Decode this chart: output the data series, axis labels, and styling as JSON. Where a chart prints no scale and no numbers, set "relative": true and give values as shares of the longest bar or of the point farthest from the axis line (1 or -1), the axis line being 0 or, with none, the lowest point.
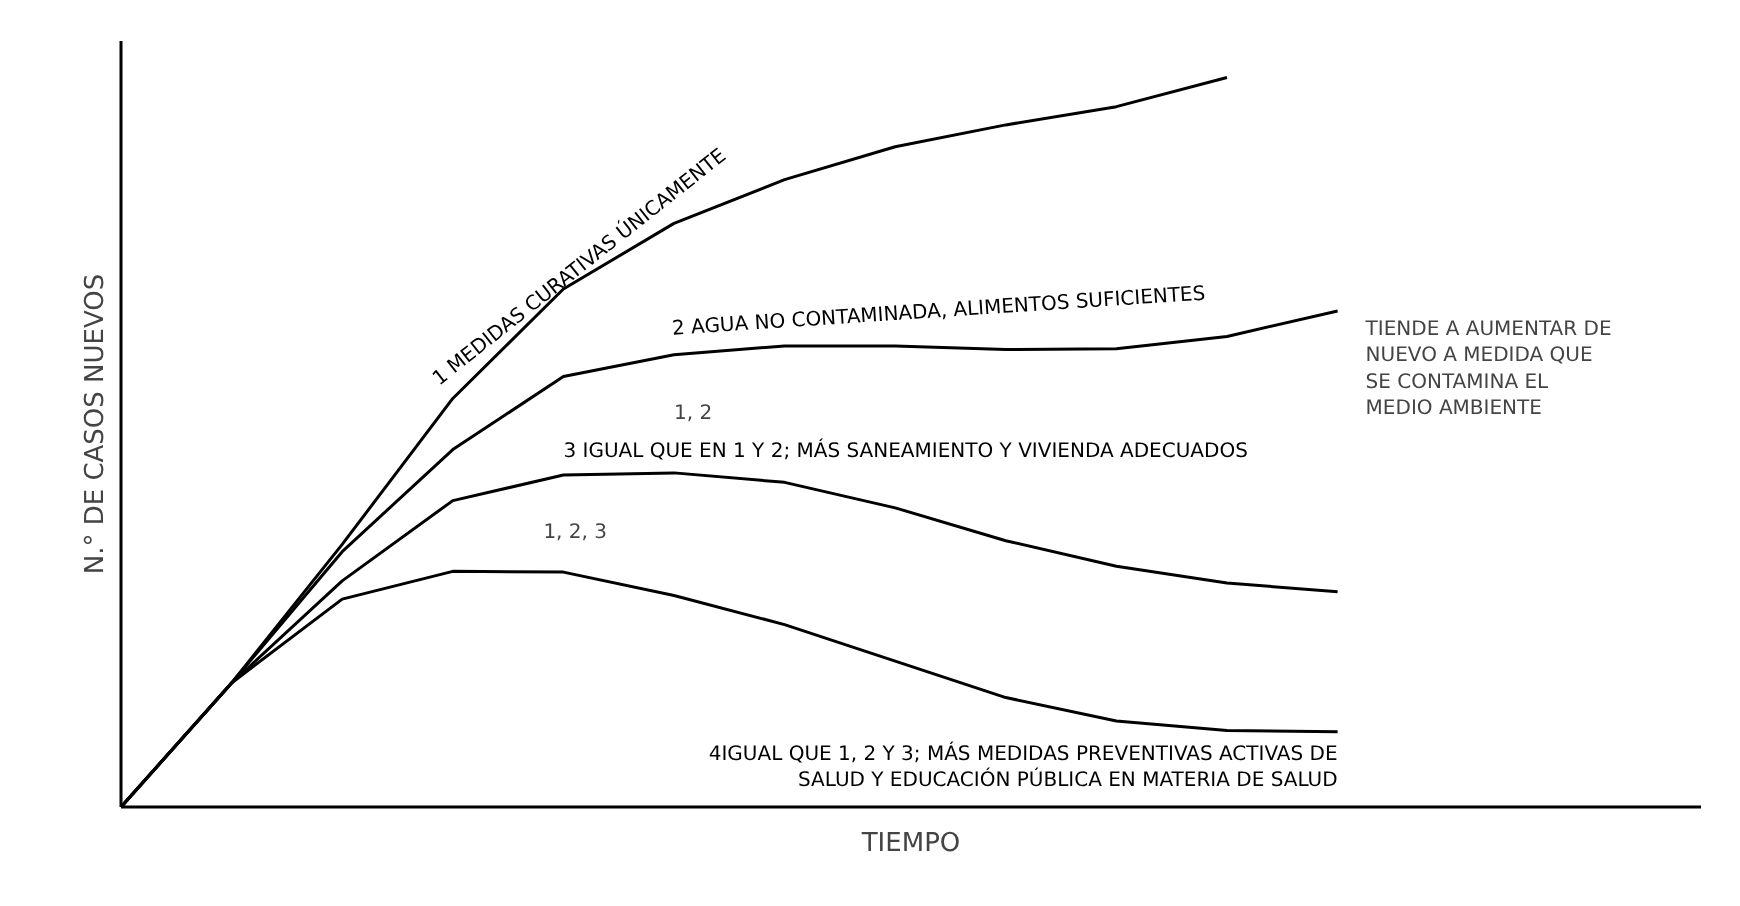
{
  "chart_data": {
    "type": "line",
    "relative": true,
    "xlabel": "TIEMPO",
    "ylabel": "N.° DE CASOS NUEVOS",
    "line_style": "solid",
    "categories": [
      null,
      null,
      null,
      null,
      null,
      null,
      null,
      null,
      null,
      null,
      null,
      null
    ],
    "series": [
      {
        "name": "1 MEDIDAS CURATIVAS ÚNICAMENTE",
        "color": "#000000",
        "values": [
          0,
          0.17,
          0.36,
          0.56,
          0.71,
          0.8,
          0.86,
          0.905,
          0.935,
          0.96,
          1,
          null
        ]
      },
      {
        "name": "2 AGUA NO CONTAMINADA, ALIMENTOS SUFICIENTES",
        "color": "#000000",
        "values": [
          0,
          0.17,
          0.35,
          0.49,
          0.59,
          0.62,
          0.632,
          0.632,
          0.627,
          0.628,
          0.645,
          0.68
        ]
      },
      {
        "name": "3 IGUAL QUE EN 1 Y 2; MÁS SANEAMIENTO Y VIVIENDA ADECUADOS",
        "color": "#000000",
        "values": [
          0,
          0.17,
          0.31,
          0.42,
          0.455,
          0.458,
          0.445,
          0.41,
          0.365,
          0.33,
          0.307,
          0.295
        ]
      },
      {
        "name": "4IGUAL QUE 1, 2 Y 3; MÁS MEDIDAS PREVENTIVAS ACTIVAS DE SALUD Y EDUCACIÓN PÚBLICA EN MATERIA DE SALUD",
        "color": "#000000",
        "values": [
          0,
          0.17,
          0.285,
          0.323,
          0.322,
          0.29,
          0.25,
          0.2,
          0.15,
          0.118,
          0.105,
          0.103
        ]
      }
    ],
    "annotations": [
      "TIENDE A AUMENTAR DE NUEVO A MEDIDA QUE SE CONTAMINA EL MEDIO AMBIENTE",
      "1, 2",
      "1, 2, 3"
    ]
  }
}
